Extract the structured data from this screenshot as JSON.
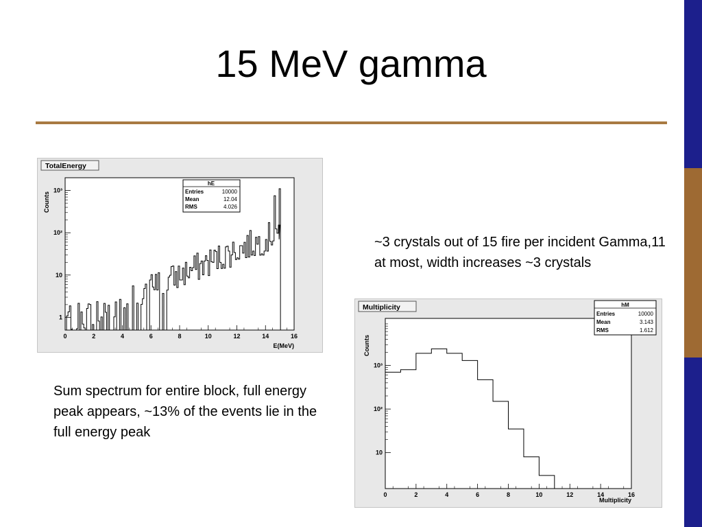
{
  "slide": {
    "title": "15 MeV gamma",
    "sidebar_colors": [
      "#1c1f8c",
      "#9e6a33",
      "#1c1f8c"
    ],
    "rule_color": "#a87a42"
  },
  "captions": {
    "left": "Sum spectrum for entire block, full energy peak appears, ~13% of the events lie in the full energy peak",
    "right": "~3 crystals out of 15 fire per incident Gamma,11 at most, width increases ~3 crystals"
  },
  "chart_data": [
    {
      "type": "line",
      "canvas_title": "TotalEnergy",
      "xlabel": "E(MeV)",
      "ylabel": "Counts",
      "xlim": [
        0,
        16
      ],
      "ylim_log": [
        0.5,
        2000
      ],
      "log_y": true,
      "grid": false,
      "xticks": [
        "0",
        "2",
        "4",
        "6",
        "8",
        "10",
        "12",
        "14",
        "16"
      ],
      "yticks": [
        {
          "value": 1,
          "label": "1"
        },
        {
          "value": 10,
          "label": "10"
        },
        {
          "value": 100,
          "label": "10²"
        },
        {
          "value": 1000,
          "label": "10³"
        }
      ],
      "stats": {
        "name": "hE",
        "rows": [
          [
            "Entries",
            "10000"
          ],
          [
            "Mean",
            "12.04"
          ],
          [
            "RMS",
            "4.026"
          ]
        ]
      },
      "trend": {
        "x": [
          0,
          2,
          4,
          6,
          8,
          10,
          12,
          14,
          14.4,
          14.7,
          14.9
        ],
        "y": [
          1,
          1.2,
          2.3,
          5,
          10,
          20,
          40,
          70,
          90,
          130,
          70
        ]
      },
      "noise_level": 0.35,
      "noise_gate": 7,
      "peak": {
        "x": 15.0,
        "y": 1100
      },
      "spike": {
        "x": 14.55,
        "y": 750
      },
      "line_color": "#000000"
    },
    {
      "type": "line",
      "canvas_title": "Multiplicity",
      "xlabel": "Multiplicity",
      "ylabel": "Counts",
      "xlim": [
        0,
        16
      ],
      "ylim_log": [
        1.5,
        12000
      ],
      "log_y": true,
      "grid": false,
      "xticks": [
        "0",
        "2",
        "4",
        "6",
        "8",
        "10",
        "12",
        "14",
        "16"
      ],
      "yticks": [
        {
          "value": 10,
          "label": "10"
        },
        {
          "value": 100,
          "label": "10²"
        },
        {
          "value": 1000,
          "label": "10³"
        }
      ],
      "stats": {
        "name": "hM",
        "rows": [
          [
            "Entries",
            "10000"
          ],
          [
            "Mean",
            "3.143"
          ],
          [
            "RMS",
            "1.612"
          ]
        ]
      },
      "bins": [
        0,
        1,
        2,
        3,
        4,
        5,
        6,
        7,
        8,
        9,
        10,
        11
      ],
      "values": [
        700,
        800,
        1900,
        2400,
        1900,
        1300,
        470,
        150,
        35,
        8,
        3,
        1
      ],
      "line_color": "#000000"
    }
  ]
}
